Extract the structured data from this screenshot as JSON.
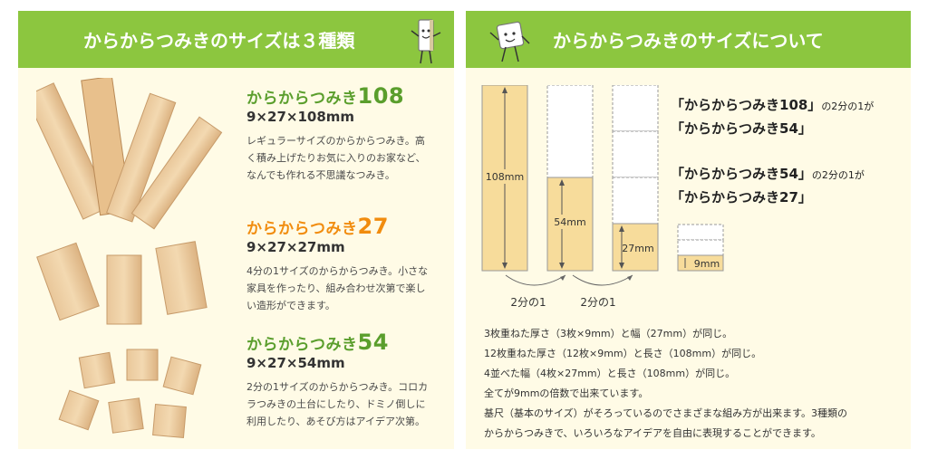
{
  "left_panel": {
    "title": "からからつみきのサイズは３種類",
    "products": [
      {
        "name": "からからつみき",
        "number": "108",
        "size": "9×27×108mm",
        "desc": [
          "レギュラーサイズのからからつみき。高",
          "く積み上げたりお気に入りのお家など、",
          "なんでも作れる不思議なつみき。"
        ]
      },
      {
        "name": "からからつみき",
        "number": "27",
        "size": "9×27×27mm",
        "desc": [
          "4分の1サイズのからからつみき。小さな",
          "家具を作ったり、組み合わせ次第で楽し",
          "い造形ができます。"
        ]
      },
      {
        "name": "からからつみき",
        "number": "54",
        "size": "9×27×54mm",
        "desc": [
          "2分の1サイズのからからつみき。コロカ",
          "ラつみきの土台にしたり、ドミノ倒しに",
          "利用したり、あそび方はアイデア次第。"
        ]
      }
    ]
  },
  "right_panel": {
    "title": "からからつみきのサイズについて",
    "diagram": {
      "label_108": "108mm",
      "label_54": "54mm",
      "label_27": "27mm",
      "label_9": "9mm",
      "half_1": "2分の1",
      "half_2": "2分の1"
    },
    "relation_1": {
      "a": "「からからつみき108」",
      "b": "の2分の1が",
      "c": "「からからつみき54」"
    },
    "relation_2": {
      "a": "「からからつみき54」",
      "b": "の2分の1が",
      "c": "「からからつみき27」"
    },
    "facts": [
      "3枚重ねた厚さ（3枚×9mm）と幅（27mm）が同じ。",
      "12枚重ねた厚さ（12枚×9mm）と長さ（108mm）が同じ。",
      "4並べた幅（4枚×27mm）と長さ（108mm）が同じ。",
      "全てが9mmの倍数で出来ています。",
      "基尺（基本のサイズ）がそろっているのでさまざまな組み方が出来ます。3種類の",
      "からからつみきで、いろいろなアイデアを自由に表現することができます。"
    ]
  },
  "colors": {
    "banner": "#8cc63f",
    "wood": "#f7dc9b",
    "green_text": "#5a9e2c",
    "orange_text": "#f18c0e"
  }
}
